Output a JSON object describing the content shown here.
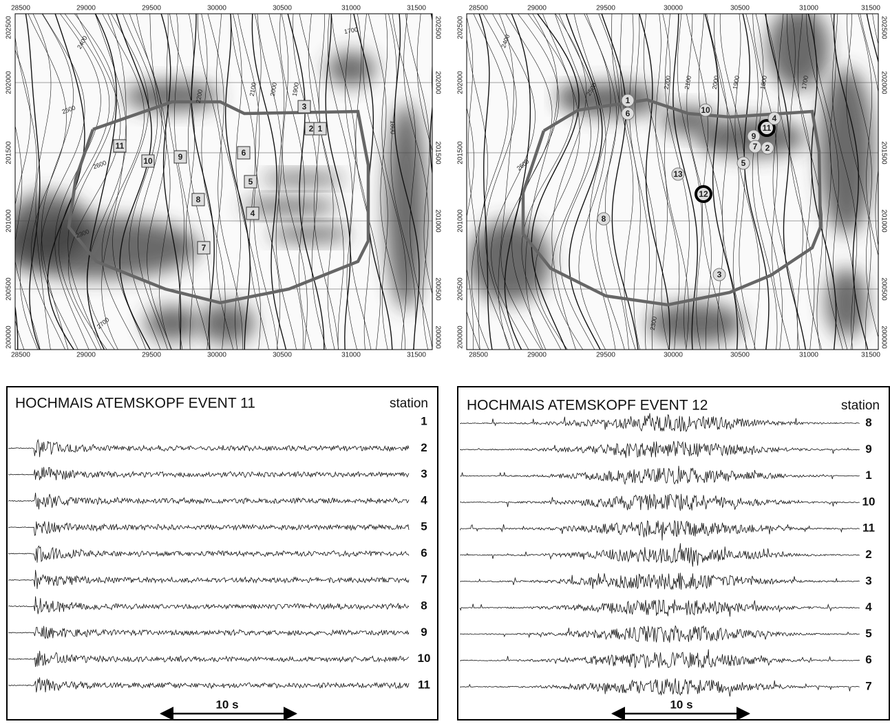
{
  "maps": [
    {
      "x_ticks": [
        "28500",
        "29000",
        "29500",
        "30000",
        "30500",
        "31000",
        "31500"
      ],
      "y_ticks": [
        "202500",
        "202000",
        "201500",
        "201000",
        "200500",
        "200000"
      ],
      "stations": [
        "11",
        "10",
        "9",
        "8",
        "7",
        "6",
        "5",
        "4",
        "3",
        "2",
        "1"
      ],
      "contour_labels": [
        "2400",
        "2500",
        "2600",
        "2700",
        "2300",
        "2200",
        "2100",
        "2000",
        "1900",
        "1800",
        "1700"
      ]
    },
    {
      "x_ticks": [
        "28500",
        "29000",
        "29500",
        "30000",
        "30500",
        "31000",
        "31500"
      ],
      "y_ticks": [
        "202500",
        "202000",
        "201500",
        "201000",
        "200500",
        "200000"
      ],
      "stations": [
        "1",
        "6",
        "10",
        "11",
        "4",
        "9",
        "7",
        "2",
        "5",
        "13",
        "12",
        "8",
        "3"
      ],
      "contour_labels": [
        "2400",
        "2500",
        "2600",
        "2200",
        "2100",
        "2000",
        "1900",
        "1800",
        "1700",
        "2300"
      ]
    }
  ],
  "seismograms": [
    {
      "title": "HOCHMAIS ATEMSKOPF EVENT 11",
      "column_header": "station",
      "traces": [
        "1",
        "2",
        "3",
        "4",
        "5",
        "6",
        "7",
        "8",
        "9",
        "10",
        "11"
      ],
      "scale_label": "10 s"
    },
    {
      "title": "HOCHMAIS ATEMSKOPF EVENT 12",
      "column_header": "station",
      "traces": [
        "8",
        "9",
        "1",
        "10",
        "11",
        "2",
        "3",
        "4",
        "5",
        "6",
        "7"
      ],
      "scale_label": "10 s"
    }
  ]
}
